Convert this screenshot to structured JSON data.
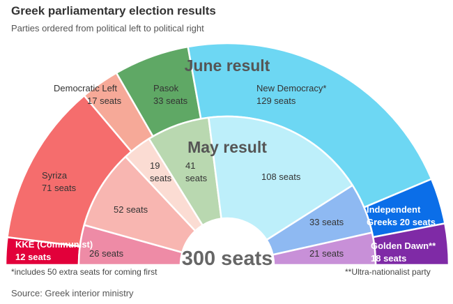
{
  "title": "Greek parliamentary election results",
  "subtitle": "Parties ordered from political left to political right",
  "chart_data": {
    "type": "pie",
    "subtype": "semicircle-parliament",
    "total_label": "300 seats",
    "rings": [
      {
        "name": "June result",
        "slices": [
          {
            "party": "KKE (Communist)",
            "label": "12 seats",
            "value": 12,
            "color": "#e2003a",
            "text_color": "#ffffff"
          },
          {
            "party": "Syriza",
            "label": "71 seats",
            "value": 71,
            "color": "#f56d6d",
            "text_color": "#333333"
          },
          {
            "party": "Democratic Left",
            "label": "17 seats",
            "value": 17,
            "color": "#f6a998",
            "text_color": "#333333"
          },
          {
            "party": "Pasok",
            "label": "33 seats",
            "value": 33,
            "color": "#5fa865",
            "text_color": "#333333"
          },
          {
            "party": "New Democracy*",
            "label": "129 seats",
            "value": 129,
            "color": "#6dd7f3",
            "text_color": "#333333"
          },
          {
            "party": "Independent Greeks",
            "label": "20 seats",
            "value": 20,
            "color": "#0b6ee8",
            "text_color": "#ffffff"
          },
          {
            "party": "Golden Dawn**",
            "label": "18 seats",
            "value": 18,
            "color": "#7f2aa6",
            "text_color": "#ffffff"
          }
        ]
      },
      {
        "name": "May result",
        "slices": [
          {
            "party": "KKE",
            "label": "26 seats",
            "value": 26,
            "color": "#ee8ba6",
            "text_color": "#333333"
          },
          {
            "party": "Syriza",
            "label": "52 seats",
            "value": 52,
            "color": "#f8b6b1",
            "text_color": "#333333"
          },
          {
            "party": "Democratic Left",
            "label": "19 seats",
            "value": 19,
            "color": "#fbdcd3",
            "text_color": "#333333"
          },
          {
            "party": "Pasok",
            "label": "41 seats",
            "value": 41,
            "color": "#b9d8b0",
            "text_color": "#333333"
          },
          {
            "party": "New Democracy",
            "label": "108 seats",
            "value": 108,
            "color": "#bdeffa",
            "text_color": "#333333"
          },
          {
            "party": "Independent Greeks",
            "label": "33 seats",
            "value": 33,
            "color": "#8eb9f2",
            "text_color": "#333333"
          },
          {
            "party": "Golden Dawn",
            "label": "21 seats",
            "value": 21,
            "color": "#c890d8",
            "text_color": "#333333"
          }
        ]
      }
    ]
  },
  "footnotes": {
    "left": "*includes 50 extra seats for coming first",
    "right": "**Ultra-nationalist party"
  },
  "source": "Source: Greek interior ministry"
}
